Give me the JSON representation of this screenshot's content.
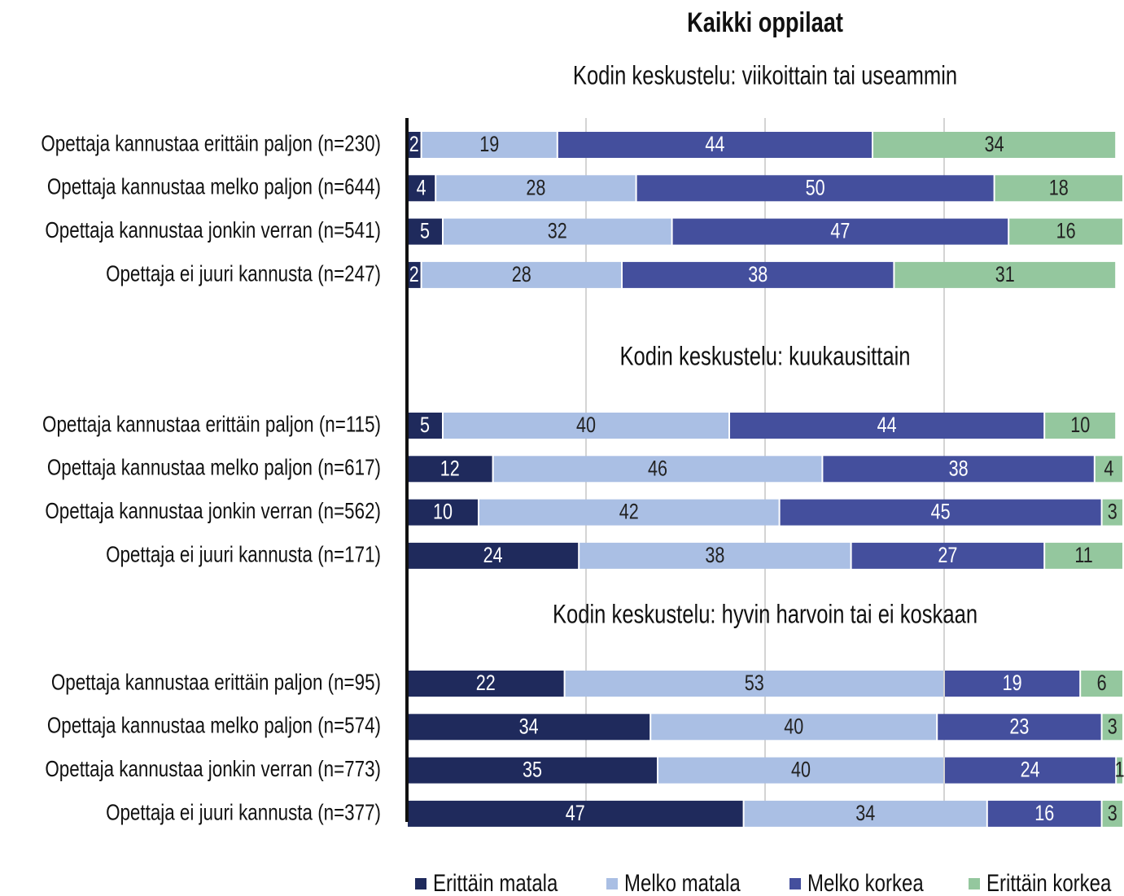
{
  "chart_data": {
    "type": "bar",
    "orientation": "horizontal",
    "stacked": true,
    "title": "Kaikki oppilaat",
    "xlim": [
      0,
      100
    ],
    "xticks": [
      25,
      50,
      75
    ],
    "grid": true,
    "legend": "bottom",
    "groups": [
      {
        "subtitle": "Kodin keskustelu: viikoittain tai useammin",
        "categories": [
          "Opettaja kannustaa erittäin paljon (n=230)",
          "Opettaja kannustaa melko paljon (n=644)",
          "Opettaja kannustaa jonkin verran (n=541)",
          "Opettaja ei juuri kannusta (n=247)"
        ]
      },
      {
        "subtitle": "Kodin keskustelu: kuukausittain",
        "categories": [
          "Opettaja kannustaa erittäin paljon (n=115)",
          "Opettaja kannustaa melko paljon (n=617)",
          "Opettaja kannustaa jonkin verran (n=562)",
          "Opettaja ei juuri kannusta (n=171)"
        ]
      },
      {
        "subtitle": "Kodin keskustelu: hyvin harvoin tai ei koskaan",
        "categories": [
          "Opettaja kannustaa erittäin paljon (n=95)",
          "Opettaja kannustaa melko paljon (n=574)",
          "Opettaja kannustaa jonkin verran (n=773)",
          "Opettaja ei juuri kannusta (n=377)"
        ]
      }
    ],
    "series": [
      {
        "name": "Erittäin matala",
        "color": "#1f2a5c",
        "values": [
          [
            2,
            4,
            5,
            2
          ],
          [
            5,
            12,
            10,
            24
          ],
          [
            22,
            34,
            35,
            47
          ]
        ]
      },
      {
        "name": "Melko matala",
        "color": "#aabfe4",
        "values": [
          [
            19,
            28,
            32,
            28
          ],
          [
            40,
            46,
            42,
            38
          ],
          [
            53,
            40,
            40,
            34
          ]
        ]
      },
      {
        "name": "Melko korkea",
        "color": "#444f9d",
        "values": [
          [
            44,
            50,
            47,
            38
          ],
          [
            44,
            38,
            45,
            27
          ],
          [
            19,
            23,
            24,
            16
          ]
        ]
      },
      {
        "name": "Erittäin korkea",
        "color": "#94c79e",
        "values": [
          [
            34,
            18,
            16,
            31
          ],
          [
            10,
            4,
            3,
            11
          ],
          [
            6,
            3,
            1,
            3
          ]
        ]
      }
    ]
  }
}
